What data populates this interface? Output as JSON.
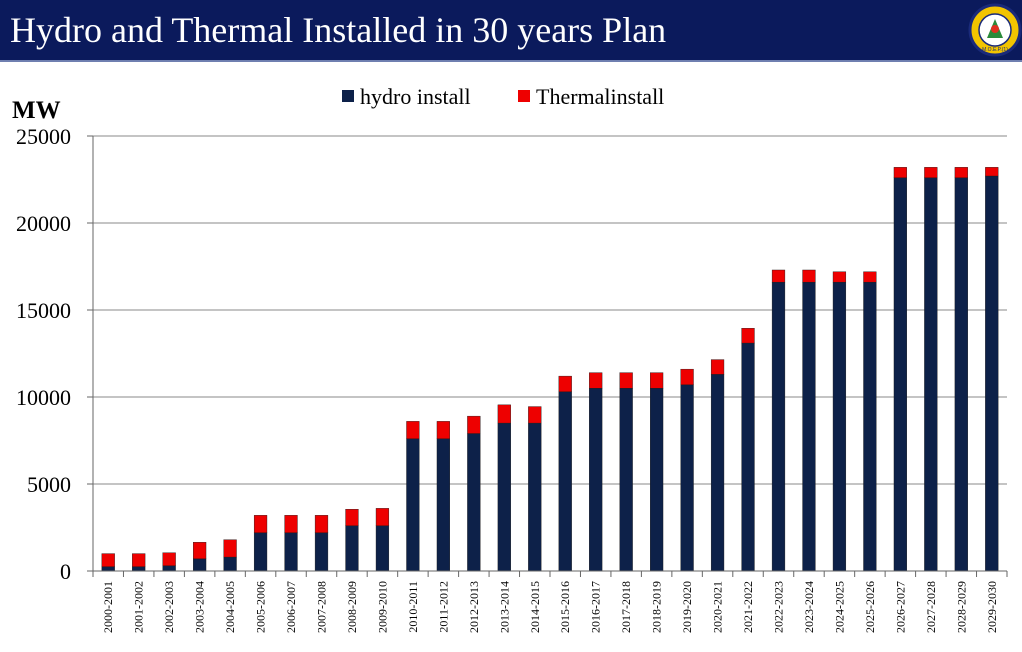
{
  "header": {
    "title": "Hydro and Thermal Installed in 30 years Plan"
  },
  "logo": {
    "text": "M.O.E.P.(1)",
    "icon": "ministry-seal-icon",
    "fill": "#f2c400",
    "ring": "#1a2a7a"
  },
  "chart_data": {
    "type": "stacked-bar",
    "ylabel": "MW",
    "ylim": [
      0,
      25000
    ],
    "yticks": [
      0,
      5000,
      10000,
      15000,
      20000,
      25000
    ],
    "grid": true,
    "legend": "top-center",
    "categories": [
      "2000-2001",
      "2001-2002",
      "2002-2003",
      "2003-2004",
      "2004-2005",
      "2005-2006",
      "2006-2007",
      "2007-2008",
      "2008-2009",
      "2009-2010",
      "2010-2011",
      "2011-2012",
      "2012-2013",
      "2013-2014",
      "2014-2015",
      "2015-2016",
      "2016-2017",
      "2017-2018",
      "2018-2019",
      "2019-2020",
      "2020-2021",
      "2021-2022",
      "2022-2023",
      "2023-2024",
      "2024-2025",
      "2025-2026",
      "2026-2027",
      "2027-2028",
      "2028-2029",
      "2029-2030"
    ],
    "series": [
      {
        "name": "hydro install",
        "color": "#0d2149",
        "values": [
          250,
          250,
          300,
          700,
          800,
          2200,
          2200,
          2200,
          2600,
          2600,
          7600,
          7600,
          7900,
          8500,
          8500,
          10300,
          10500,
          10500,
          10500,
          10700,
          11300,
          13100,
          16600,
          16600,
          16600,
          16600,
          22600,
          22600,
          22600,
          22700
        ]
      },
      {
        "name": "Thermalinstall",
        "color": "#ee0000",
        "values": [
          750,
          750,
          750,
          950,
          1000,
          1000,
          1000,
          1000,
          950,
          1000,
          1000,
          1000,
          1000,
          1050,
          950,
          900,
          900,
          900,
          900,
          900,
          850,
          850,
          700,
          700,
          600,
          600,
          600,
          600,
          600,
          500
        ]
      }
    ]
  }
}
